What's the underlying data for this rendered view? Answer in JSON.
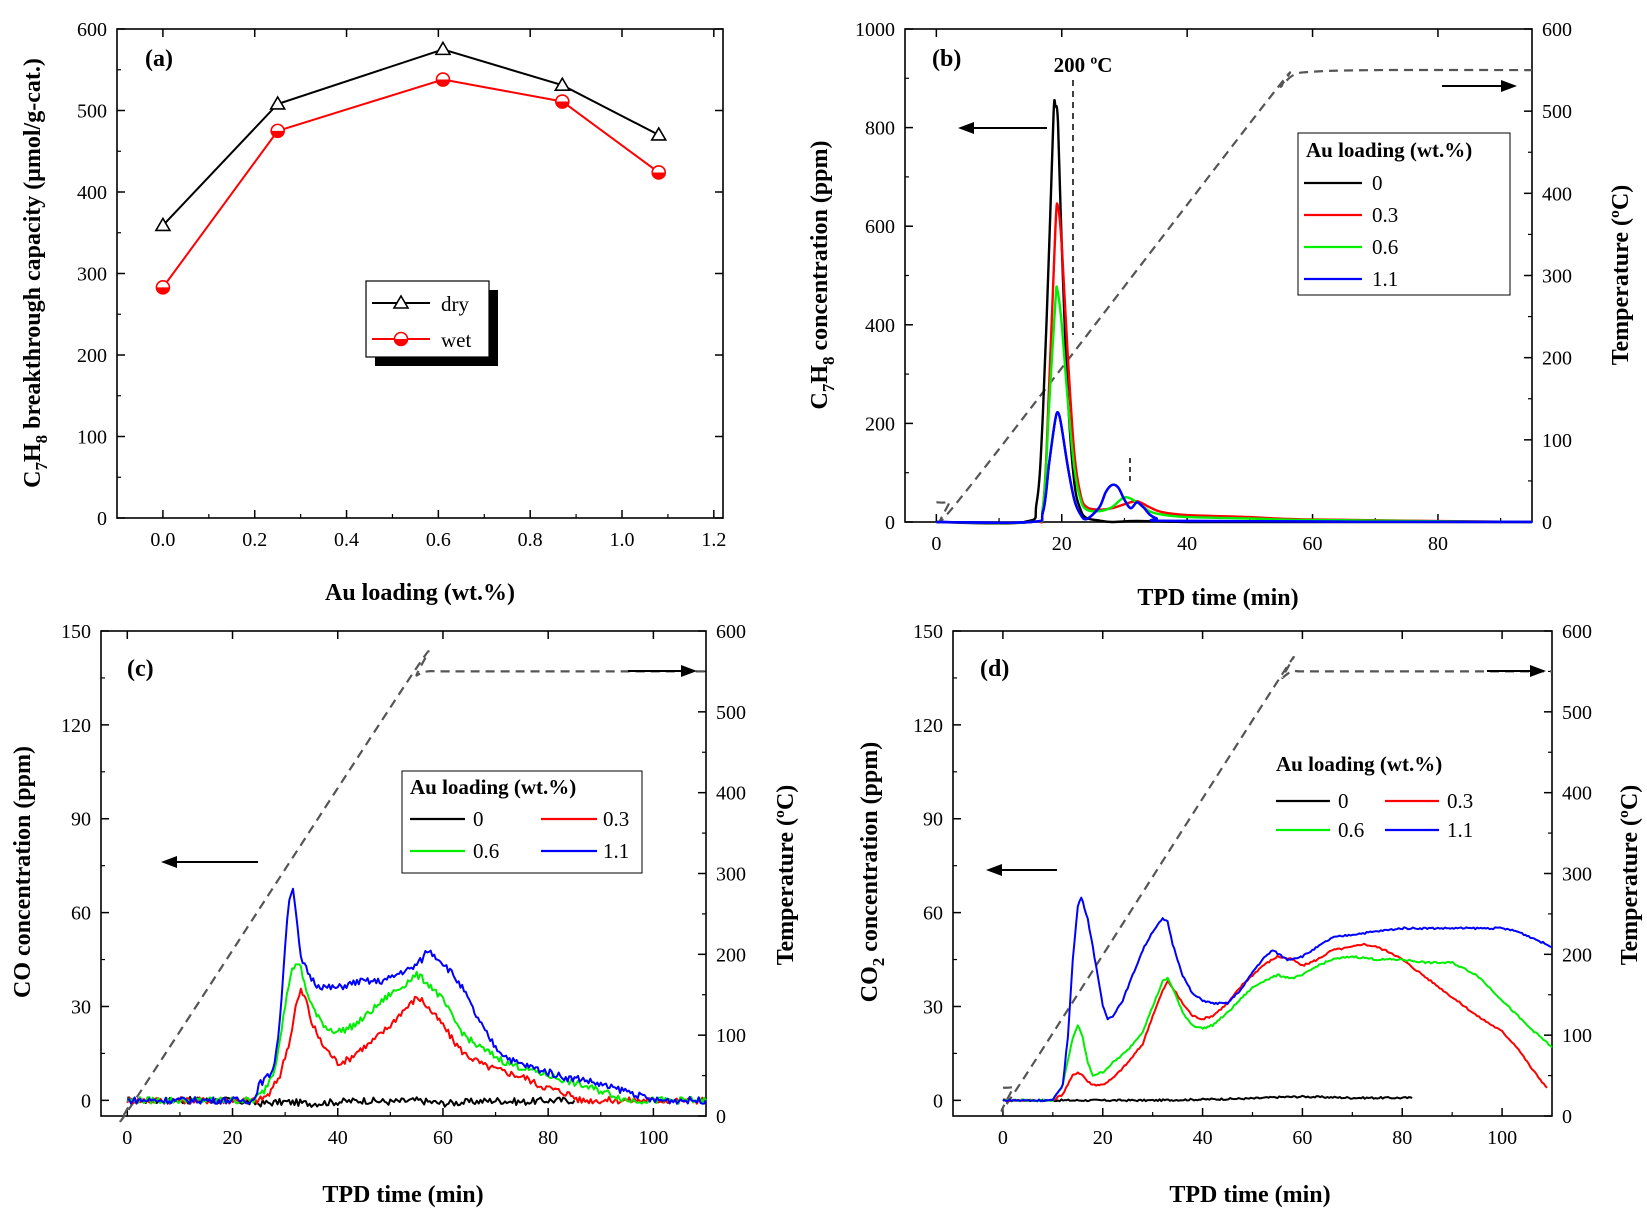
{
  "chart_data": [
    {
      "id": "a",
      "type": "line",
      "panel_label": "(a)",
      "xlabel": "Au loading (wt.%)",
      "ylabel_parts": [
        "C",
        "7",
        "H",
        "8",
        " breakthrough capacity (μmol/g-cat.)"
      ],
      "xlim": [
        -0.1,
        1.22
      ],
      "ylim": [
        0,
        600
      ],
      "xticks": [
        0.0,
        0.2,
        0.4,
        0.6,
        0.8,
        1.0,
        1.2
      ],
      "xtick_labels": [
        "0.0",
        "0.2",
        "0.4",
        "0.6",
        "0.8",
        "1.0",
        "1.2"
      ],
      "yticks": [
        0,
        100,
        200,
        300,
        400,
        500,
        600
      ],
      "legend_position": "center",
      "series": [
        {
          "name": "dry",
          "color": "#000000",
          "marker": "triangle",
          "x": [
            0,
            0.25,
            0.61,
            0.87,
            1.08
          ],
          "values": [
            359,
            508,
            575,
            531,
            470
          ]
        },
        {
          "name": "wet",
          "color": "#ff0000",
          "marker": "half-circle",
          "x": [
            0,
            0.25,
            0.61,
            0.87,
            1.08
          ],
          "values": [
            283,
            475,
            538,
            511,
            424
          ]
        }
      ]
    },
    {
      "id": "b",
      "type": "line",
      "panel_label": "(b)",
      "xlabel": "TPD time (min)",
      "ylabel_parts": [
        "C",
        "7",
        "H",
        "8",
        " concentration (ppm)"
      ],
      "y2label": "Temperature (ºC)",
      "xlim": [
        -5,
        95
      ],
      "ylim": [
        0,
        1000
      ],
      "y2lim": [
        0,
        600
      ],
      "xticks": [
        0,
        20,
        40,
        60,
        80
      ],
      "yticks": [
        0,
        200,
        400,
        600,
        800,
        1000
      ],
      "y2ticks": [
        0,
        100,
        200,
        300,
        400,
        500,
        600
      ],
      "annotation": "200 ºC",
      "legend_title": "Au loading (wt.%)",
      "legend_position": "right",
      "temperature": {
        "x": [
          0,
          2,
          5,
          52,
          55,
          57,
          60,
          70,
          95
        ],
        "values": [
          24,
          25,
          40,
          505,
          530,
          544,
          548,
          550,
          550
        ]
      },
      "series": [
        {
          "name": "0",
          "color": "#000000",
          "x": [
            0,
            14,
            16,
            17,
            18,
            18.7,
            19,
            19.4,
            20,
            21,
            22,
            23,
            24,
            26,
            28,
            32,
            40,
            50,
            95
          ],
          "values": [
            0,
            0,
            40,
            220,
            560,
            830,
            843,
            810,
            560,
            250,
            80,
            25,
            8,
            3,
            -3,
            2,
            0,
            0,
            0
          ]
        },
        {
          "name": "0.3",
          "color": "#ff0000",
          "x": [
            0,
            15,
            17,
            18,
            19,
            19.4,
            20,
            21,
            22,
            23,
            24,
            26,
            28,
            30,
            32,
            34,
            36,
            40,
            50,
            60,
            95
          ],
          "values": [
            0,
            0,
            30,
            280,
            600,
            640,
            560,
            330,
            140,
            55,
            30,
            25,
            28,
            36,
            42,
            30,
            20,
            14,
            10,
            5,
            0
          ]
        },
        {
          "name": "0.6",
          "color": "#00ee00",
          "x": [
            0,
            15,
            17,
            18,
            19,
            19.3,
            20,
            21,
            22,
            23,
            24,
            26,
            28,
            30,
            32,
            34,
            36,
            40,
            50,
            60,
            95
          ],
          "values": [
            0,
            0,
            30,
            240,
            450,
            470,
            400,
            240,
            110,
            45,
            25,
            22,
            30,
            50,
            40,
            22,
            15,
            10,
            7,
            4,
            0
          ]
        },
        {
          "name": "1.1",
          "color": "#0000ff",
          "x": [
            0,
            15,
            17,
            18,
            19,
            19.5,
            20,
            21,
            22,
            23,
            24,
            26,
            27,
            28,
            29,
            30,
            31,
            32,
            33,
            35,
            40,
            95
          ],
          "values": [
            0,
            0,
            20,
            120,
            210,
            220,
            190,
            110,
            45,
            15,
            6,
            30,
            60,
            75,
            70,
            45,
            28,
            40,
            30,
            8,
            2,
            0
          ]
        }
      ]
    },
    {
      "id": "c",
      "type": "line",
      "panel_label": "(c)",
      "xlabel": "TPD time (min)",
      "ylabel_parts": [
        "CO concentration (ppm)"
      ],
      "y2label": "Temperature (ºC)",
      "xlim": [
        -5,
        110
      ],
      "ylim": [
        -5,
        150
      ],
      "y2lim": [
        0,
        600
      ],
      "xticks": [
        0,
        20,
        40,
        60,
        80,
        100
      ],
      "yticks": [
        0,
        30,
        60,
        90,
        120,
        150
      ],
      "y2ticks": [
        0,
        100,
        200,
        300,
        400,
        500,
        600
      ],
      "legend_title": "Au loading (wt.%)",
      "legend_position": "center-right",
      "temperature": {
        "x": [
          0,
          1,
          3,
          53,
          55,
          57,
          60,
          70,
          110
        ],
        "values": [
          20,
          21,
          35,
          535,
          545,
          550,
          550,
          550,
          550
        ]
      },
      "series": [
        {
          "name": "0",
          "color": "#000000",
          "x": [
            0,
            20,
            25,
            30,
            35,
            40,
            45,
            50,
            55,
            60,
            65,
            70,
            75,
            80,
            85
          ],
          "values": [
            0,
            0,
            -1,
            -0.5,
            -1,
            -0.5,
            0,
            -0.5,
            0,
            -1,
            -0.5,
            0,
            -0.5,
            0,
            0
          ]
        },
        {
          "name": "0.3",
          "color": "#ff0000",
          "x": [
            0,
            25,
            27,
            29,
            31,
            32,
            33,
            34,
            35,
            37,
            39,
            40,
            42,
            44,
            46,
            48,
            50,
            52,
            54,
            55,
            56,
            58,
            60,
            62,
            64,
            66,
            68,
            70,
            72,
            74,
            76,
            78,
            80,
            82,
            84,
            86,
            110
          ],
          "values": [
            0,
            0,
            2,
            8,
            20,
            30,
            35,
            32,
            25,
            18,
            14,
            12,
            13,
            16,
            18,
            21,
            24,
            28,
            31,
            33,
            32,
            28,
            24,
            19,
            15,
            13,
            11,
            10,
            9,
            8,
            7,
            5,
            4,
            3,
            2,
            0,
            0
          ]
        },
        {
          "name": "0.6",
          "color": "#00ee00",
          "x": [
            0,
            24,
            26,
            28,
            30,
            31,
            32,
            33,
            34,
            36,
            38,
            40,
            42,
            44,
            46,
            48,
            50,
            52,
            54,
            55,
            56,
            58,
            60,
            62,
            64,
            66,
            68,
            70,
            72,
            74,
            76,
            78,
            80,
            82,
            84,
            86,
            88,
            90,
            92,
            95,
            110
          ],
          "values": [
            0,
            0,
            3,
            10,
            30,
            40,
            44,
            42,
            35,
            27,
            23,
            22,
            23,
            25,
            28,
            31,
            34,
            36,
            39,
            40,
            39,
            36,
            32,
            26,
            21,
            18,
            16,
            14,
            12,
            11,
            10,
            9,
            8,
            7,
            6,
            5,
            4,
            3,
            2,
            0,
            0
          ]
        },
        {
          "name": "1.1",
          "color": "#0000ff",
          "x": [
            0,
            24,
            25,
            27,
            28,
            29,
            30,
            30.8,
            31.5,
            32,
            33,
            34,
            35,
            36,
            38,
            40,
            42,
            44,
            46,
            48,
            50,
            52,
            54,
            56,
            57,
            58,
            60,
            62,
            64,
            66,
            68,
            70,
            72,
            74,
            76,
            78,
            80,
            82,
            84,
            86,
            88,
            90,
            92,
            95,
            98,
            100,
            110
          ],
          "values": [
            0,
            0,
            5,
            8,
            12,
            25,
            50,
            65,
            68,
            60,
            45,
            42,
            39,
            37,
            36,
            36,
            37,
            38,
            38,
            38,
            39,
            41,
            42,
            45,
            48,
            47,
            44,
            40,
            35,
            28,
            22,
            17,
            14,
            12,
            11,
            10,
            9,
            8,
            7,
            7,
            6,
            5,
            4,
            3,
            1,
            0,
            0
          ]
        }
      ]
    },
    {
      "id": "d",
      "type": "line",
      "panel_label": "(d)",
      "xlabel": "TPD time (min)",
      "ylabel_parts": [
        "CO",
        "2",
        " concentration (ppm)"
      ],
      "y2label": "Temperature (ºC)",
      "xlim": [
        -10,
        110
      ],
      "ylim": [
        -5,
        150
      ],
      "y2lim": [
        0,
        600
      ],
      "xticks": [
        0,
        20,
        40,
        60,
        80,
        100
      ],
      "yticks": [
        0,
        30,
        60,
        90,
        120,
        150
      ],
      "y2ticks": [
        0,
        100,
        200,
        300,
        400,
        500,
        600
      ],
      "legend_title": "Au loading (wt.%)",
      "legend_position": "center-right",
      "temperature": {
        "x": [
          0,
          2,
          4,
          54,
          56,
          58,
          60,
          70,
          110
        ],
        "values": [
          35,
          36,
          45,
          528,
          542,
          550,
          550,
          550,
          550
        ]
      },
      "series": [
        {
          "name": "0",
          "color": "#000000",
          "x": [
            0,
            10,
            20,
            30,
            40,
            50,
            55,
            60,
            65,
            70,
            75,
            80,
            82
          ],
          "values": [
            0,
            0,
            0,
            0,
            0.3,
            0.6,
            1.0,
            1.2,
            1.0,
            0.8,
            0.8,
            0.8,
            0.8
          ]
        },
        {
          "name": "0.3",
          "color": "#ff0000",
          "x": [
            0,
            10,
            12,
            14,
            15,
            16,
            17,
            18,
            20,
            22,
            25,
            28,
            30,
            32,
            33,
            34,
            36,
            38,
            40,
            42,
            45,
            48,
            50,
            52,
            55,
            58,
            60,
            63,
            66,
            70,
            72,
            75,
            78,
            80,
            85,
            90,
            95,
            100,
            103,
            106,
            109
          ],
          "values": [
            0,
            0,
            2,
            8,
            9,
            8,
            6,
            5,
            5,
            7,
            12,
            18,
            27,
            35,
            38,
            36,
            31,
            27,
            26,
            27,
            31,
            37,
            40,
            43,
            46,
            45,
            43,
            45,
            48,
            49,
            50,
            49,
            47,
            45,
            39,
            33,
            27,
            22,
            17,
            10,
            4
          ]
        },
        {
          "name": "0.6",
          "color": "#00ee00",
          "x": [
            0,
            10,
            12,
            14,
            15,
            16,
            17,
            18,
            20,
            22,
            25,
            28,
            30,
            32,
            33,
            34,
            36,
            38,
            40,
            42,
            45,
            48,
            50,
            52,
            55,
            58,
            60,
            63,
            66,
            70,
            75,
            80,
            85,
            90,
            95,
            100,
            105,
            110
          ],
          "values": [
            0,
            0,
            5,
            20,
            24,
            20,
            12,
            8,
            9,
            12,
            16,
            22,
            30,
            38,
            39,
            36,
            28,
            24,
            23,
            24,
            28,
            33,
            36,
            38,
            40,
            39,
            40,
            43,
            45,
            46,
            45,
            45,
            44,
            44,
            40,
            32,
            24,
            17
          ]
        },
        {
          "name": "1.1",
          "color": "#0000ff",
          "x": [
            0,
            10,
            12,
            13,
            14,
            15,
            15.7,
            17,
            19,
            20,
            21,
            22,
            24,
            26,
            28,
            30,
            32,
            33,
            34,
            36,
            38,
            40,
            42,
            45,
            48,
            50,
            52,
            54,
            55,
            57,
            60,
            63,
            66,
            70,
            75,
            80,
            85,
            90,
            95,
            100,
            103,
            106,
            110
          ],
          "values": [
            0,
            0,
            5,
            20,
            45,
            62,
            65,
            58,
            40,
            30,
            26,
            27,
            32,
            40,
            48,
            54,
            58,
            57,
            50,
            40,
            34,
            32,
            31,
            31,
            36,
            41,
            45,
            48,
            47,
            45,
            46,
            49,
            52,
            53,
            54,
            55,
            55,
            55,
            55,
            55,
            54,
            52,
            49
          ]
        }
      ]
    }
  ]
}
